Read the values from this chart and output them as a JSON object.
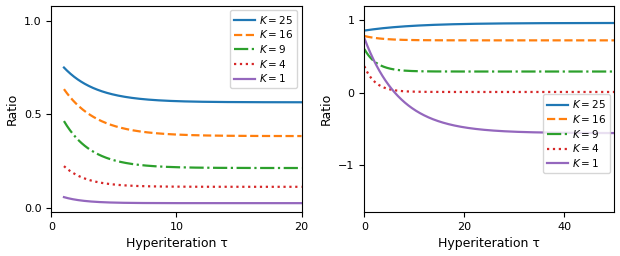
{
  "left_xlabel": "Hyperiteration τ",
  "right_xlabel": "Hyperiteration τ",
  "ylabel": "Ratio",
  "K_values": [
    25,
    16,
    9,
    4,
    1
  ],
  "colors": [
    "#1f77b4",
    "#ff7f0e",
    "#2ca02c",
    "#d62728",
    "#9467bd"
  ],
  "linestyles": [
    "-",
    "--",
    "-.",
    ":",
    "-"
  ],
  "left_xlim": [
    0,
    20
  ],
  "left_xticks": [
    0,
    10,
    20
  ],
  "left_ylim": [
    -0.02,
    1.08
  ],
  "left_yticks": [
    0.0,
    0.5,
    1.0
  ],
  "right_xlim": [
    0,
    50
  ],
  "right_xticks": [
    0,
    20,
    40
  ],
  "right_ylim": [
    -1.65,
    1.2
  ],
  "right_yticks": [
    -1,
    0,
    1
  ],
  "figsize": [
    6.2,
    2.56
  ],
  "dpi": 100,
  "left_params": {
    "25": {
      "a0": 0.75,
      "ainf": 0.565,
      "b": 0.38
    },
    "16": {
      "a0": 0.635,
      "ainf": 0.385,
      "b": 0.38
    },
    "9": {
      "a0": 0.465,
      "ainf": 0.215,
      "b": 0.45
    },
    "4": {
      "a0": 0.225,
      "ainf": 0.115,
      "b": 0.55
    },
    "1": {
      "a0": 0.06,
      "ainf": 0.028,
      "b": 0.6
    }
  },
  "right_params": {
    "25": {
      "ainf": 0.96,
      "diff": -0.105,
      "b": 0.1
    },
    "16": {
      "ainf": 0.72,
      "diff": 0.06,
      "b": 0.28
    },
    "9": {
      "ainf": 0.29,
      "diff": 0.31,
      "b": 0.4
    },
    "4": {
      "ainf": 0.008,
      "diff": 0.355,
      "b": 0.45
    },
    "1": {
      "ainf": -0.56,
      "diff": 1.31,
      "b": 0.14
    }
  }
}
